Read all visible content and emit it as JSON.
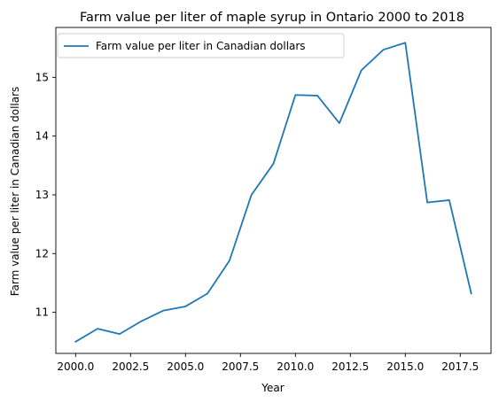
{
  "colors": {
    "series": "#1f77b4",
    "axes": "#000000",
    "legend_border": "#cccccc"
  },
  "chart_data": {
    "type": "line",
    "title": "Farm value per liter of maple syrup in Ontario 2000 to 2018",
    "xlabel": "Year",
    "ylabel": "Farm value per liter in Canadian dollars",
    "xlim": [
      1999.1,
      2018.9
    ],
    "ylim": [
      10.3,
      15.85
    ],
    "x_ticks": [
      2000.0,
      2002.5,
      2005.0,
      2007.5,
      2010.0,
      2012.5,
      2015.0,
      2017.5
    ],
    "x_tick_labels": [
      "2000.0",
      "2002.5",
      "2005.0",
      "2007.5",
      "2010.0",
      "2012.5",
      "2015.0",
      "2017.5"
    ],
    "y_ticks": [
      11,
      12,
      13,
      14,
      15
    ],
    "y_tick_labels": [
      "11",
      "12",
      "13",
      "14",
      "15"
    ],
    "grid": false,
    "legend_position": "upper-left",
    "series": [
      {
        "name": "Farm value per liter in Canadian dollars",
        "x": [
          2000,
          2001,
          2002,
          2003,
          2004,
          2005,
          2006,
          2007,
          2008,
          2009,
          2010,
          2011,
          2012,
          2013,
          2014,
          2015,
          2016,
          2017,
          2018
        ],
        "values": [
          10.5,
          10.72,
          10.63,
          10.85,
          11.03,
          11.1,
          11.32,
          11.88,
          13.0,
          13.53,
          14.7,
          14.69,
          14.22,
          15.12,
          15.47,
          15.59,
          12.87,
          12.91,
          11.32
        ]
      }
    ]
  }
}
